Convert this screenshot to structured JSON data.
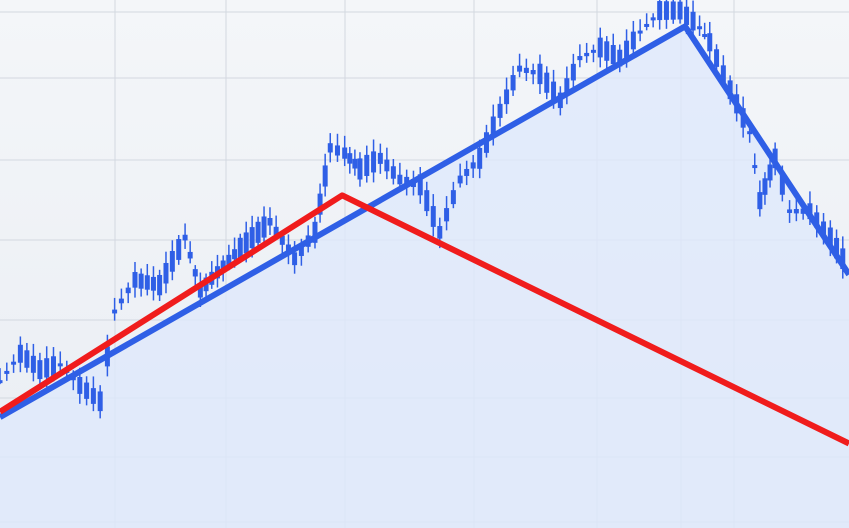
{
  "chart_data": {
    "type": "line",
    "title": "",
    "xlabel": "",
    "ylabel": "",
    "xlim": [
      0,
      100
    ],
    "ylim": [
      0,
      100
    ],
    "grid": true,
    "legend": "none",
    "series": [
      {
        "style": "candlestick",
        "color": "#2f5fe6",
        "x": [
          0,
          2.4,
          4.7,
          7.1,
          9.4,
          11.8,
          13.5,
          15.9,
          18.8,
          21.8,
          23.6,
          28.3,
          31.8,
          34.7,
          37.1,
          38.9,
          40.6,
          42.4,
          44.8,
          47.1,
          49.5,
          51.8,
          54.2,
          56.5,
          58.9,
          61.2,
          63.6,
          66,
          68.3,
          70.7,
          73,
          75.4,
          77.7,
          80.1,
          82.4,
          83.6,
          86,
          88.3,
          89.5,
          91.3,
          93,
          95.4,
          97.8,
          100
        ],
        "values": [
          28,
          33,
          30,
          31,
          27,
          24,
          41,
          47,
          46,
          55,
          45,
          53,
          58,
          51,
          56,
          72,
          71,
          68,
          70,
          66,
          65,
          56,
          66,
          70,
          79,
          87,
          86,
          81,
          89,
          91,
          89,
          94,
          98,
          98,
          95,
          92,
          83,
          75,
          62,
          70,
          60,
          60,
          55,
          49
        ]
      },
      {
        "style": "trend-line",
        "color": "#2f5fe6",
        "x": [
          0,
          80.7,
          100
        ],
        "values": [
          21,
          95,
          48
        ]
      },
      {
        "style": "trend-line",
        "color": "#f01c1c",
        "x": [
          0,
          40.3,
          100
        ],
        "values": [
          22,
          63,
          16
        ]
      }
    ],
    "colors": {
      "fill": "#dfe8fb",
      "grid": "#d3d8e0",
      "background": "#eef1f6"
    }
  }
}
